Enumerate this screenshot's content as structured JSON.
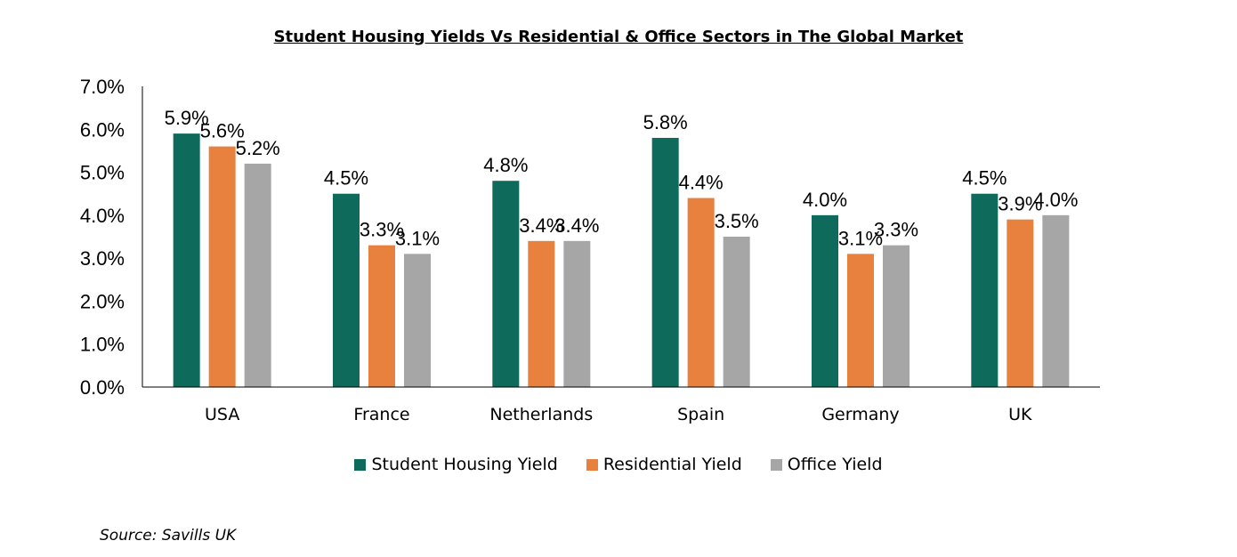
{
  "chart_data": {
    "type": "bar",
    "title": "Student Housing Yields Vs Residential & Office Sectors in The Global Market",
    "categories": [
      "USA",
      "France",
      "Netherlands",
      "Spain",
      "Germany",
      "UK"
    ],
    "series": [
      {
        "name": "Student Housing Yield",
        "color": "#0e6b5c",
        "values": [
          5.9,
          4.5,
          4.8,
          5.8,
          4.0,
          4.5
        ],
        "labels": [
          "5.9%",
          "4.5%",
          "4.8%",
          "5.8%",
          "4.0%",
          "4.5%"
        ]
      },
      {
        "name": "Residential Yield",
        "color": "#e8803e",
        "values": [
          5.6,
          3.3,
          3.4,
          4.4,
          3.1,
          3.9
        ],
        "labels": [
          "5.6%",
          "3.3%",
          "3.4%",
          "4.4%",
          "3.1%",
          "3.9%"
        ]
      },
      {
        "name": "Office Yield",
        "color": "#a6a6a6",
        "values": [
          5.2,
          3.1,
          3.4,
          3.5,
          3.3,
          4.0
        ],
        "labels": [
          "5.2%",
          "3.1%",
          "3.4%",
          "3.5%",
          "3.3%",
          "4.0%"
        ]
      }
    ],
    "yticks": [
      "0.0%",
      "1.0%",
      "2.0%",
      "3.0%",
      "4.0%",
      "5.0%",
      "6.0%",
      "7.0%"
    ],
    "ylim": [
      0,
      7
    ],
    "grid": false,
    "legend_position": "bottom"
  },
  "source": "Source: Savills UK"
}
